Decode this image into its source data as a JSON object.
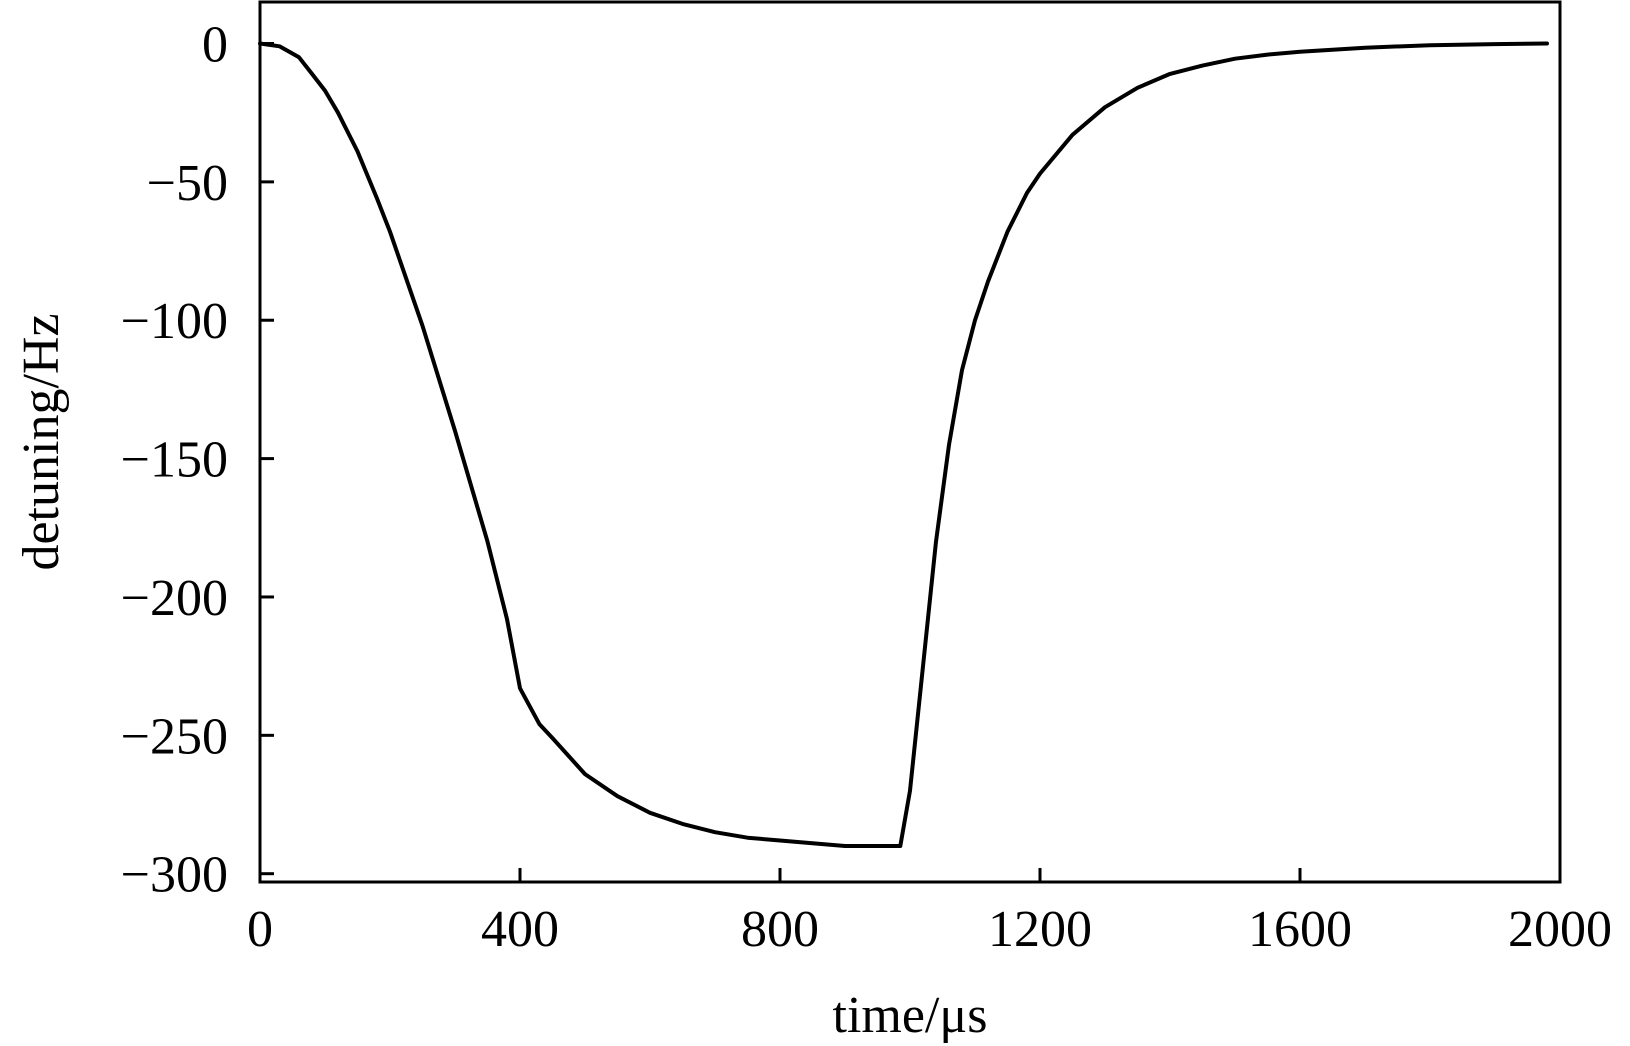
{
  "chart_data": {
    "type": "line",
    "title": "",
    "xlabel": "time/μs",
    "ylabel": "detuning/Hz",
    "xlim": [
      0,
      2000
    ],
    "ylim": [
      -303,
      15
    ],
    "x_ticks": [
      0,
      400,
      800,
      1200,
      1600,
      2000
    ],
    "y_ticks": [
      0,
      -50,
      -100,
      -150,
      -200,
      -250,
      -300
    ],
    "x_tick_labels": [
      "0",
      "400",
      "800",
      "1200",
      "1600",
      "2000"
    ],
    "y_tick_labels": [
      "0",
      "−50",
      "−100",
      "−150",
      "−200",
      "−250",
      "−300"
    ],
    "grid": false,
    "ticks_direction": "in",
    "series": [
      {
        "color": "#000000",
        "x": [
          0,
          30,
          60,
          80,
          100,
          120,
          150,
          180,
          200,
          250,
          300,
          350,
          380,
          400,
          430,
          450,
          500,
          550,
          600,
          650,
          700,
          750,
          800,
          850,
          900,
          950,
          985,
          1000,
          1020,
          1040,
          1060,
          1080,
          1100,
          1120,
          1150,
          1180,
          1200,
          1250,
          1300,
          1350,
          1400,
          1450,
          1500,
          1550,
          1600,
          1700,
          1800,
          1900,
          1980
        ],
        "y": [
          0,
          -1,
          -5,
          -11,
          -17,
          -25,
          -39,
          -56,
          -68,
          -102,
          -140,
          -180,
          -208,
          -233,
          -246,
          -251,
          -264,
          -272,
          -278,
          -282,
          -285,
          -287,
          -288,
          -289,
          -290,
          -290,
          -290,
          -270,
          -225,
          -180,
          -145,
          -118,
          -100,
          -86,
          -68,
          -54,
          -47,
          -33,
          -23,
          -16,
          -11,
          -8,
          -5.5,
          -4,
          -3,
          -1.5,
          -0.6,
          -0.2,
          0
        ]
      }
    ]
  }
}
